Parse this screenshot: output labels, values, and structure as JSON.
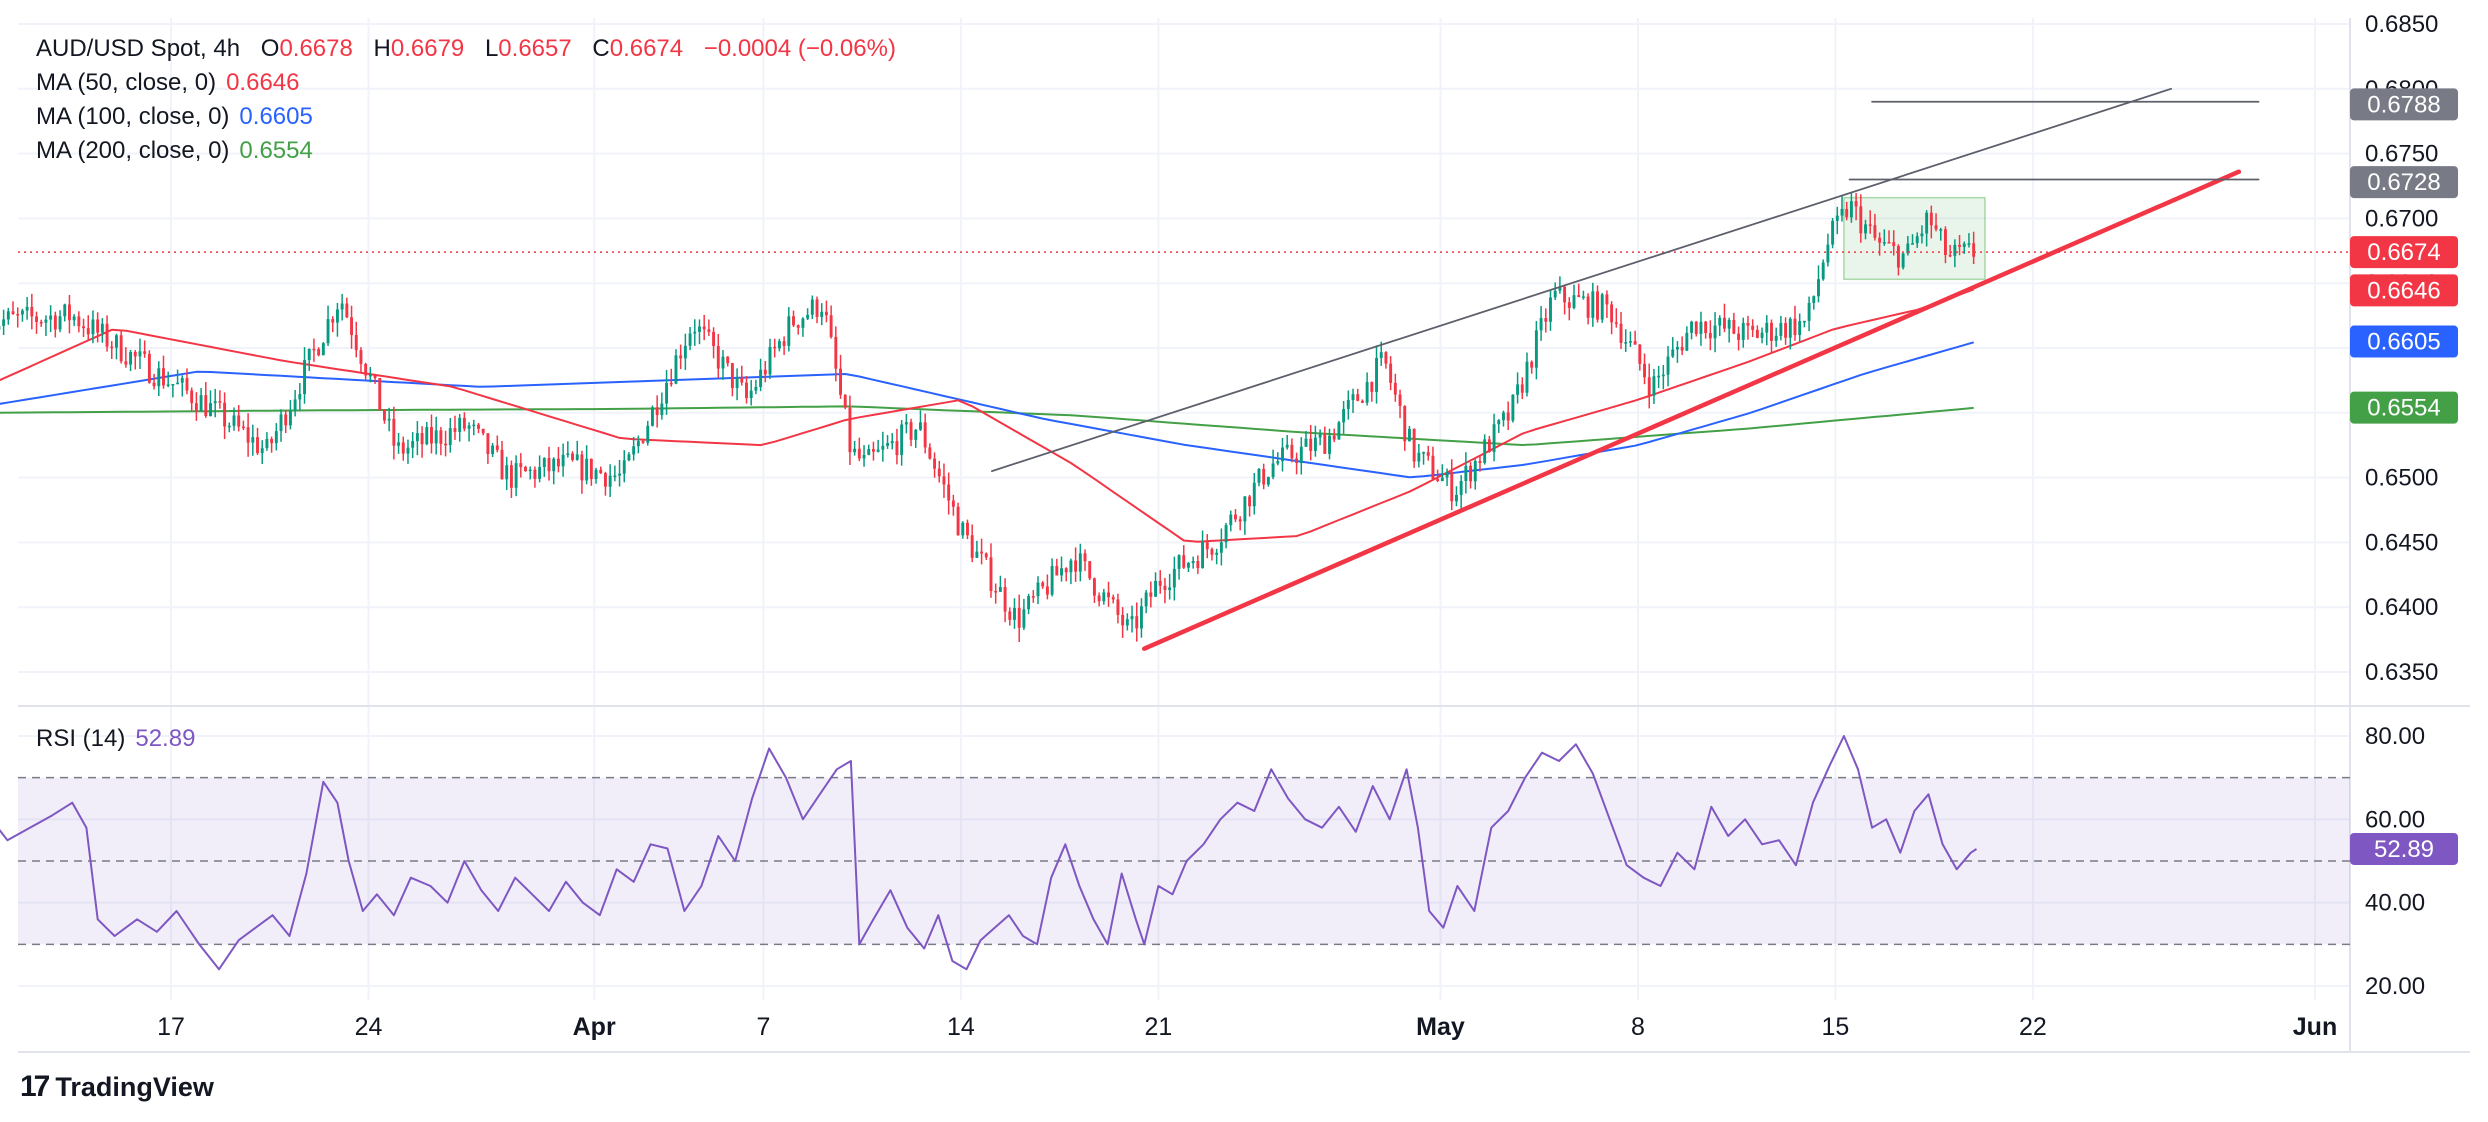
{
  "header": {
    "symbol": "AUD/USD Spot, 4h",
    "open_label": "O",
    "open": "0.6678",
    "high_label": "H",
    "high": "0.6679",
    "low_label": "L",
    "low": "0.6657",
    "close_label": "C",
    "close": "0.6674",
    "change": "−0.0004 (−0.06%)"
  },
  "indicators": [
    {
      "label": "MA (50, close, 0)",
      "value": "0.6646",
      "color": "#f23645"
    },
    {
      "label": "MA (100, close, 0)",
      "value": "0.6605",
      "color": "#2962ff"
    },
    {
      "label": "MA (200, close, 0)",
      "value": "0.6554",
      "color": "#43a047"
    }
  ],
  "rsi": {
    "label": "RSI (14)",
    "value": "52.89",
    "color": "#7e57c2"
  },
  "brand": "TradingView",
  "colors": {
    "up": "#089981",
    "down": "#f23645",
    "grid": "#f0f3fa",
    "trend": "#f23645",
    "channel": "#5d606b"
  },
  "chart_data": {
    "type": "candlestick",
    "title": "AUD/USD Spot, 4h",
    "xlabel": "",
    "ylabel": "",
    "price_axis": {
      "ticks": [
        "0.6850",
        "0.6800",
        "0.6750",
        "0.6700",
        "0.6650",
        "0.6600",
        "0.6550",
        "0.6500",
        "0.6450",
        "0.6400",
        "0.6350"
      ],
      "ylim": [
        0.633,
        0.686
      ]
    },
    "time_axis": {
      "ticks": [
        "17",
        "24",
        "Apr",
        "7",
        "14",
        "21",
        "May",
        "8",
        "15",
        "22",
        "Jun"
      ],
      "tick_days": [
        4,
        11,
        19,
        25,
        32,
        39,
        49,
        56,
        63,
        70,
        80
      ]
    },
    "price_labels": [
      {
        "value": "0.6788",
        "color": "#787b86"
      },
      {
        "value": "0.6728",
        "color": "#787b86"
      },
      {
        "value": "0.6674",
        "color": "#f23645"
      },
      {
        "value": "0.6646",
        "color": "#f23645"
      },
      {
        "value": "0.6605",
        "color": "#2962ff"
      },
      {
        "value": "0.6554",
        "color": "#43a047"
      }
    ],
    "close_path_days": [
      -2.6,
      0.5,
      3.5,
      5.0,
      7.4,
      10.0,
      12.0,
      14.5,
      16.0,
      18.0,
      20.0,
      22.5,
      24.4,
      26.0,
      27.1,
      28.1,
      28.6,
      30.5,
      32.0,
      34.0,
      36.0,
      38.0,
      39.0,
      41.0,
      43.0,
      45.0,
      47.0,
      48.0,
      49.5,
      51.5,
      53.0,
      55.0,
      56.5,
      58.0,
      60.0,
      62.0,
      62.7,
      63.5,
      64.5,
      65.5,
      66.3,
      67.0,
      68.0
    ],
    "close_path": [
      0.662,
      0.6625,
      0.658,
      0.656,
      0.652,
      0.664,
      0.652,
      0.654,
      0.65,
      0.651,
      0.65,
      0.662,
      0.656,
      0.662,
      0.6635,
      0.652,
      0.651,
      0.654,
      0.646,
      0.639,
      0.644,
      0.638,
      0.642,
      0.645,
      0.651,
      0.653,
      0.659,
      0.652,
      0.649,
      0.655,
      0.664,
      0.663,
      0.657,
      0.662,
      0.661,
      0.662,
      0.668,
      0.671,
      0.668,
      0.667,
      0.67,
      0.667,
      0.6674
    ],
    "ma50_days": [
      -2.6,
      2,
      8,
      14,
      20,
      25,
      28,
      32,
      36,
      40,
      44,
      48,
      52,
      56,
      60,
      63,
      66,
      68
    ],
    "ma50": [
      0.657,
      0.6615,
      0.659,
      0.657,
      0.653,
      0.6525,
      0.6545,
      0.656,
      0.651,
      0.645,
      0.6455,
      0.649,
      0.6535,
      0.656,
      0.659,
      0.6615,
      0.663,
      0.6646
    ],
    "ma100_days": [
      -2.6,
      5,
      15,
      28,
      35,
      40,
      48,
      52,
      56,
      60,
      64,
      68
    ],
    "ma100": [
      0.6555,
      0.6582,
      0.657,
      0.658,
      0.6545,
      0.6525,
      0.65,
      0.651,
      0.6525,
      0.655,
      0.658,
      0.6605
    ],
    "ma200_days": [
      -2.6,
      10,
      20,
      28,
      36,
      44,
      52,
      60,
      68
    ],
    "ma200": [
      0.655,
      0.6552,
      0.6553,
      0.6555,
      0.6548,
      0.6535,
      0.6525,
      0.6538,
      0.6554
    ],
    "channel_lines": [
      {
        "from": [
          33.1,
          0.6505
        ],
        "to": [
          74.9,
          0.68
        ]
      },
      {
        "from": [
          38.5,
          0.6368
        ],
        "to": [
          77.3,
          0.6736
        ]
      },
      {
        "from": [
          63.5,
          0.673
        ],
        "to": [
          78.0,
          0.673
        ]
      },
      {
        "from": [
          64.3,
          0.679
        ],
        "to": [
          78.0,
          0.679
        ]
      }
    ],
    "consolidation_box": {
      "days": [
        63.3,
        68.3
      ],
      "prices": [
        0.6653,
        0.6716
      ]
    },
    "rsi_series": {
      "name": "RSI (14)",
      "ylim": [
        17,
        83
      ],
      "bands": [
        30,
        50,
        70
      ],
      "ticks": [
        "80.00",
        "60.00",
        "40.00",
        "20.00"
      ],
      "days": [
        -2.6,
        -1.8,
        -1.0,
        -0.2,
        0.5,
        1.0,
        1.4,
        2.0,
        2.8,
        3.5,
        4.2,
        5.0,
        5.7,
        6.4,
        7.0,
        7.6,
        8.2,
        8.8,
        9.4,
        9.9,
        10.3,
        10.8,
        11.3,
        11.9,
        12.5,
        13.2,
        13.8,
        14.4,
        15.0,
        15.6,
        16.2,
        16.8,
        17.4,
        18.0,
        18.6,
        19.2,
        19.8,
        20.4,
        21.0,
        21.6,
        22.2,
        22.8,
        23.4,
        24.0,
        24.6,
        25.2,
        25.8,
        26.4,
        27.0,
        27.6,
        28.1,
        28.4,
        28.9,
        29.5,
        30.1,
        30.7,
        31.2,
        31.7,
        32.2,
        32.7,
        33.2,
        33.7,
        34.2,
        34.7,
        35.2,
        35.7,
        36.2,
        36.7,
        37.2,
        37.7,
        38.2,
        38.5,
        39.0,
        39.5,
        40.0,
        40.6,
        41.2,
        41.8,
        42.4,
        43.0,
        43.6,
        44.2,
        44.8,
        45.4,
        46.0,
        46.6,
        47.2,
        47.8,
        48.2,
        48.6,
        49.1,
        49.6,
        50.2,
        50.8,
        51.4,
        52.0,
        52.6,
        53.2,
        53.8,
        54.4,
        55.0,
        55.6,
        56.2,
        56.8,
        57.4,
        58.0,
        58.6,
        59.2,
        59.8,
        60.4,
        61.0,
        61.6,
        62.2,
        62.8,
        63.3,
        63.8,
        64.3,
        64.8,
        65.3,
        65.8,
        66.3,
        66.8,
        67.3,
        67.8,
        68.0
      ],
      "values": [
        62,
        55,
        58,
        61,
        64,
        58,
        36,
        32,
        36,
        33,
        38,
        30,
        24,
        31,
        34,
        37,
        32,
        47,
        69,
        64,
        50,
        38,
        42,
        37,
        46,
        44,
        40,
        50,
        43,
        38,
        46,
        42,
        38,
        45,
        40,
        37,
        48,
        45,
        54,
        53,
        38,
        44,
        56,
        50,
        65,
        77,
        70,
        60,
        66,
        72,
        74,
        30,
        36,
        43,
        34,
        29,
        37,
        26,
        24,
        31,
        34,
        37,
        32,
        30,
        46,
        54,
        44,
        36,
        30,
        47,
        36,
        30,
        44,
        42,
        50,
        54,
        60,
        64,
        62,
        72,
        65,
        60,
        58,
        63,
        57,
        68,
        60,
        72,
        58,
        38,
        34,
        44,
        38,
        58,
        62,
        70,
        76,
        74,
        78,
        71,
        60,
        49,
        46,
        44,
        52,
        48,
        63,
        56,
        60,
        54,
        55,
        49,
        64,
        73,
        80,
        72,
        58,
        60,
        52,
        62,
        66,
        54,
        48,
        52,
        52.89
      ]
    }
  }
}
